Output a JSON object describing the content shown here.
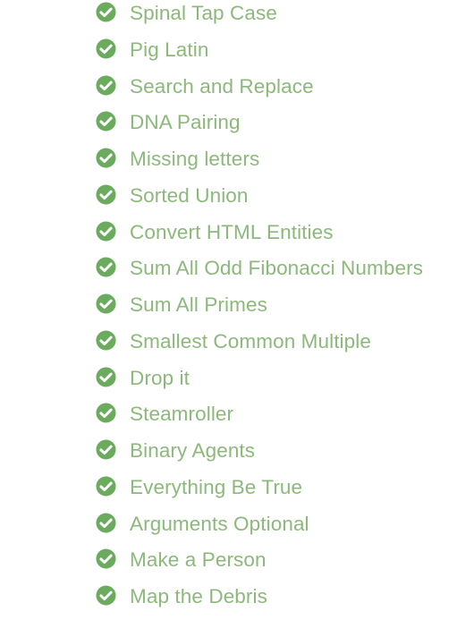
{
  "colors": {
    "accent": "#8cb97b",
    "check_fill": "#6bab5e"
  },
  "icon": "check-circle-icon",
  "challenges": [
    {
      "label": "Spinal Tap Case",
      "completed": true
    },
    {
      "label": "Pig Latin",
      "completed": true
    },
    {
      "label": "Search and Replace",
      "completed": true
    },
    {
      "label": "DNA Pairing",
      "completed": true
    },
    {
      "label": "Missing letters",
      "completed": true
    },
    {
      "label": "Sorted Union",
      "completed": true
    },
    {
      "label": "Convert HTML Entities",
      "completed": true
    },
    {
      "label": "Sum All Odd Fibonacci Numbers",
      "completed": true
    },
    {
      "label": "Sum All Primes",
      "completed": true
    },
    {
      "label": "Smallest Common Multiple",
      "completed": true
    },
    {
      "label": "Drop it",
      "completed": true
    },
    {
      "label": "Steamroller",
      "completed": true
    },
    {
      "label": "Binary Agents",
      "completed": true
    },
    {
      "label": "Everything Be True",
      "completed": true
    },
    {
      "label": "Arguments Optional",
      "completed": true
    },
    {
      "label": "Make a Person",
      "completed": true
    },
    {
      "label": "Map the Debris",
      "completed": true
    }
  ]
}
